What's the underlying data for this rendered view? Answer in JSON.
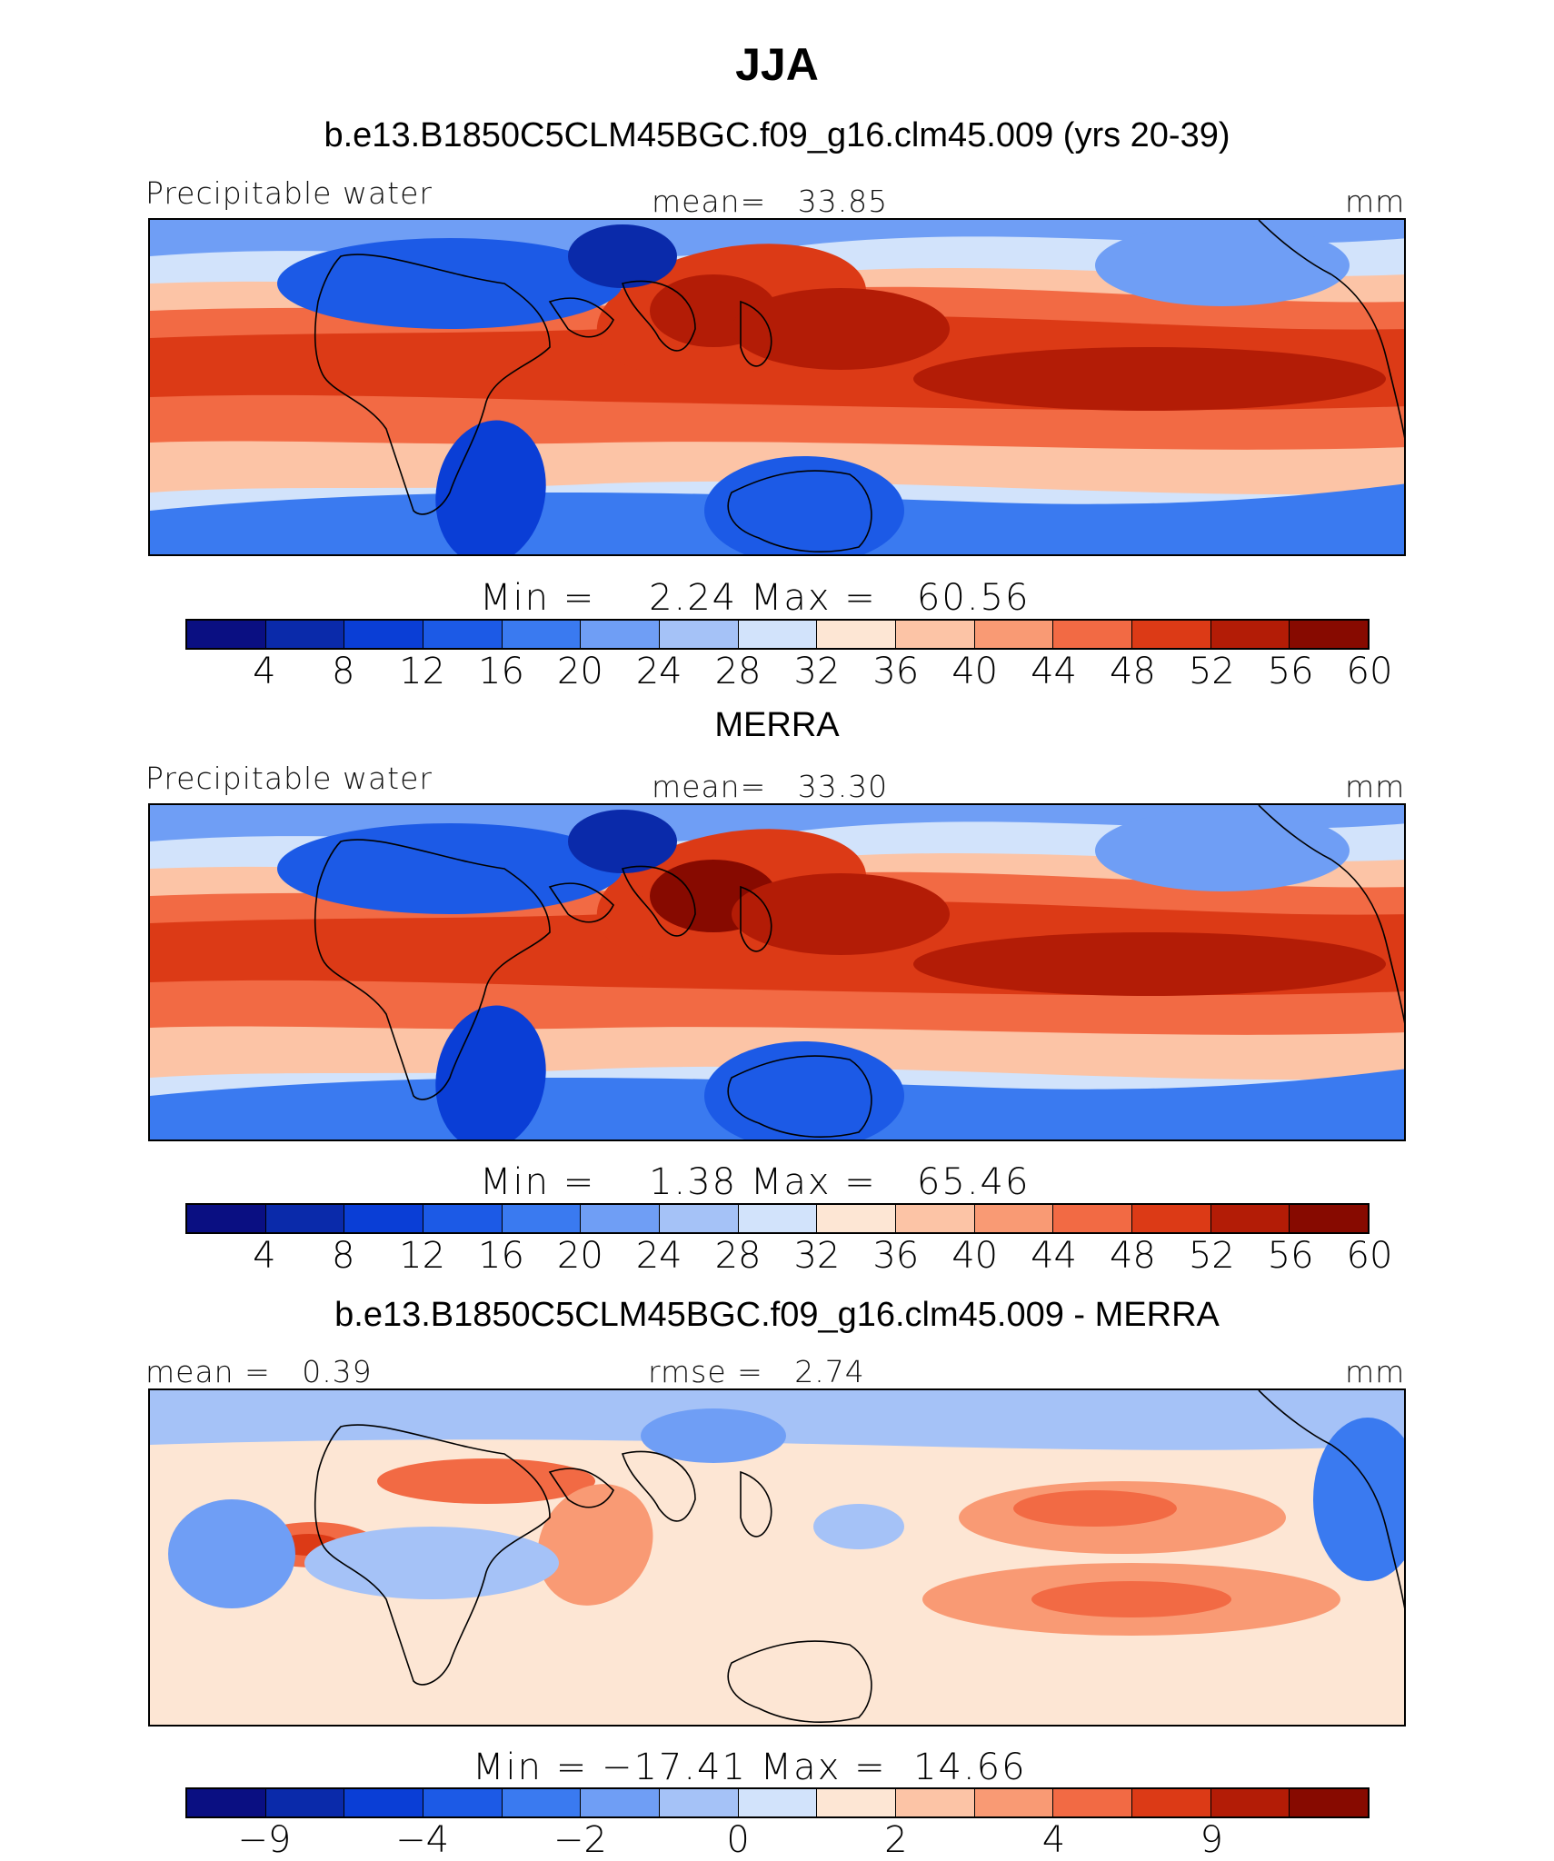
{
  "title": "JJA",
  "panels": [
    {
      "id": "model",
      "title": "b.e13.B1850C5CLM45BGC.f09_g16.clm45.009 (yrs 20-39)",
      "left_label": "Precipitable water",
      "center_label": "mean=   33.85",
      "right_label": "mm",
      "minmax": "Min =    2.24 Max =   60.56",
      "field_type": "precipitable-water",
      "colorbar_ticks": [
        "4",
        "8",
        "12",
        "16",
        "20",
        "24",
        "28",
        "32",
        "36",
        "40",
        "44",
        "48",
        "52",
        "56",
        "60"
      ]
    },
    {
      "id": "obs",
      "title": "MERRA",
      "left_label": "Precipitable water",
      "center_label": "mean=   33.30",
      "right_label": "mm",
      "minmax": "Min =    1.38 Max =   65.46",
      "field_type": "precipitable-water",
      "colorbar_ticks": [
        "4",
        "8",
        "12",
        "16",
        "20",
        "24",
        "28",
        "32",
        "36",
        "40",
        "44",
        "48",
        "52",
        "56",
        "60"
      ]
    },
    {
      "id": "diff",
      "title": "b.e13.B1850C5CLM45BGC.f09_g16.clm45.009 - MERRA",
      "left_label": "mean =   0.39",
      "center_label": "rmse =   2.74",
      "right_label": "mm",
      "minmax": "Min = −17.41 Max =  14.66",
      "field_type": "difference",
      "colorbar_ticks": [
        "−9",
        "−4",
        "−2",
        "0",
        "2",
        "4",
        "9"
      ]
    }
  ],
  "palette": [
    "#0a0f82",
    "#0a2aaa",
    "#0a3ed6",
    "#1c5ae6",
    "#3a7af0",
    "#6f9ef5",
    "#a5c2f7",
    "#d2e3fb",
    "#fde6d4",
    "#fcc4a6",
    "#f99a74",
    "#f26a44",
    "#dc3a16",
    "#b31c06",
    "#870a00"
  ]
}
